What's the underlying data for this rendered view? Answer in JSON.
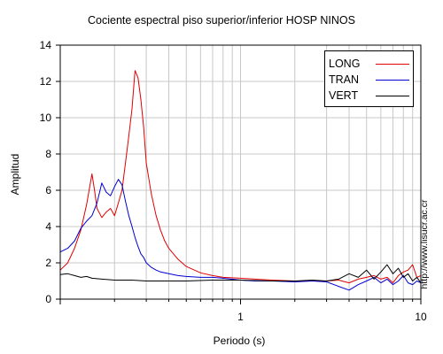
{
  "chart_data": {
    "type": "line",
    "title": "Cociente espectral piso superior/inferior  HOSP NINOS",
    "xlabel": "Periodo (s)",
    "ylabel": "Amplitud",
    "xscale": "log",
    "xlim": [
      0.1,
      10
    ],
    "ylim": [
      0,
      14
    ],
    "xticks": [
      1,
      10
    ],
    "xticklabels": [
      "1",
      "10"
    ],
    "yticks": [
      0,
      2,
      4,
      6,
      8,
      10,
      12,
      14
    ],
    "yticklabels": [
      "0",
      "2",
      "4",
      "6",
      "8",
      "10",
      "12",
      "14"
    ],
    "grid": true,
    "legend_position": "top-right",
    "series": [
      {
        "name": "LONG",
        "color": "#e00000",
        "x": [
          0.1,
          0.11,
          0.12,
          0.13,
          0.14,
          0.15,
          0.155,
          0.16,
          0.17,
          0.18,
          0.19,
          0.2,
          0.21,
          0.22,
          0.23,
          0.24,
          0.25,
          0.26,
          0.27,
          0.28,
          0.29,
          0.3,
          0.32,
          0.34,
          0.36,
          0.38,
          0.4,
          0.45,
          0.5,
          0.6,
          0.7,
          0.8,
          1.0,
          1.2,
          1.5,
          2.0,
          2.5,
          3.0,
          3.5,
          4.0,
          4.5,
          5.0,
          5.5,
          6.0,
          6.5,
          7.0,
          7.5,
          8.0,
          8.5,
          9.0,
          9.5,
          10.0
        ],
        "values": [
          1.6,
          2.0,
          2.8,
          3.8,
          5.2,
          6.9,
          6.0,
          5.0,
          4.5,
          4.8,
          5.0,
          4.6,
          5.3,
          6.0,
          7.5,
          9.0,
          10.5,
          12.6,
          12.2,
          11.0,
          9.5,
          7.5,
          5.8,
          4.6,
          3.8,
          3.2,
          2.8,
          2.2,
          1.8,
          1.45,
          1.3,
          1.2,
          1.15,
          1.1,
          1.05,
          1.0,
          1.0,
          1.0,
          1.05,
          0.9,
          1.1,
          1.2,
          1.3,
          1.1,
          1.2,
          0.9,
          1.3,
          1.5,
          1.6,
          1.9,
          1.2,
          1.3
        ]
      },
      {
        "name": "TRAN",
        "color": "#0000d0",
        "x": [
          0.1,
          0.11,
          0.12,
          0.13,
          0.14,
          0.15,
          0.16,
          0.17,
          0.18,
          0.19,
          0.2,
          0.21,
          0.22,
          0.23,
          0.24,
          0.25,
          0.26,
          0.27,
          0.28,
          0.29,
          0.3,
          0.32,
          0.34,
          0.36,
          0.38,
          0.4,
          0.45,
          0.5,
          0.6,
          0.7,
          0.8,
          1.0,
          1.2,
          1.5,
          2.0,
          2.5,
          3.0,
          3.5,
          4.0,
          4.5,
          5.0,
          5.5,
          6.0,
          6.5,
          7.0,
          7.5,
          8.0,
          8.5,
          9.0,
          9.5,
          10.0
        ],
        "values": [
          2.6,
          2.8,
          3.2,
          3.9,
          4.3,
          4.6,
          5.3,
          6.4,
          5.9,
          5.7,
          6.2,
          6.6,
          6.3,
          5.4,
          4.6,
          4.0,
          3.4,
          2.9,
          2.5,
          2.3,
          2.0,
          1.75,
          1.6,
          1.5,
          1.45,
          1.4,
          1.3,
          1.25,
          1.2,
          1.2,
          1.15,
          1.05,
          1.0,
          1.0,
          0.95,
          1.0,
          0.95,
          0.7,
          0.5,
          0.8,
          1.0,
          1.2,
          0.9,
          1.1,
          0.8,
          1.0,
          1.3,
          0.9,
          0.8,
          1.0,
          0.9
        ]
      },
      {
        "name": "VERT",
        "color": "#000000",
        "x": [
          0.1,
          0.11,
          0.12,
          0.13,
          0.14,
          0.15,
          0.17,
          0.2,
          0.25,
          0.3,
          0.4,
          0.5,
          0.7,
          1.0,
          1.5,
          2.0,
          2.5,
          3.0,
          3.5,
          4.0,
          4.5,
          5.0,
          5.5,
          6.0,
          6.5,
          7.0,
          7.5,
          8.0,
          8.5,
          9.0,
          9.5,
          10.0
        ],
        "values": [
          1.35,
          1.4,
          1.3,
          1.2,
          1.25,
          1.15,
          1.1,
          1.05,
          1.05,
          1.0,
          1.0,
          1.0,
          1.05,
          1.05,
          1.0,
          1.0,
          1.05,
          1.0,
          1.1,
          1.4,
          1.2,
          1.6,
          1.1,
          1.5,
          1.9,
          1.4,
          1.7,
          1.2,
          1.4,
          1.0,
          1.2,
          0.9
        ]
      }
    ]
  },
  "side_text": "http://www.lisucr.ac.cr"
}
